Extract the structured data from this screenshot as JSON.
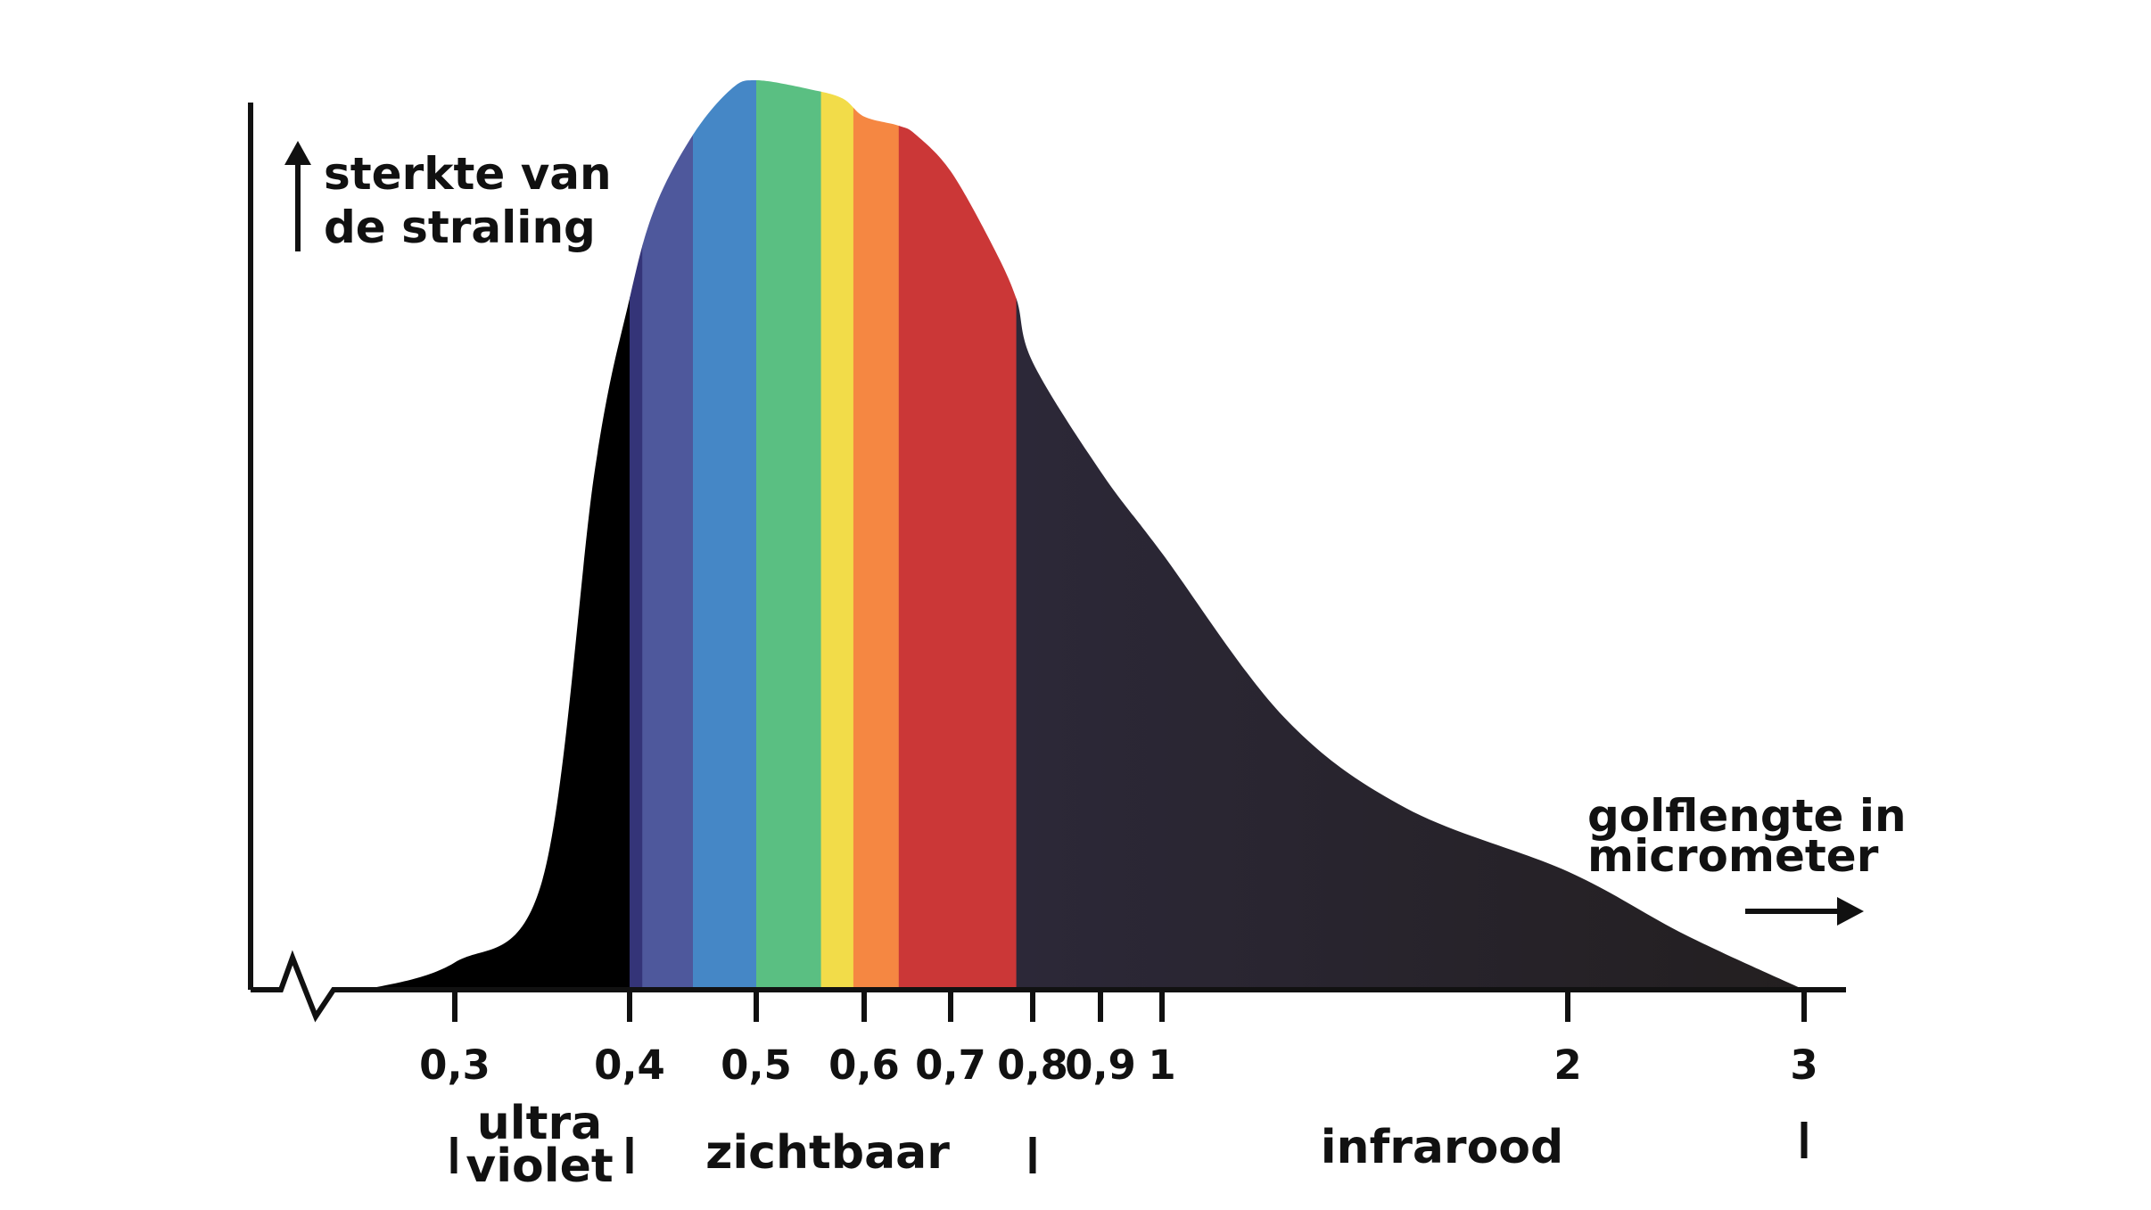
{
  "chart_data": {
    "type": "area",
    "ylabel": [
      "sterkte van",
      "de straling"
    ],
    "xlabel": [
      "golflengte in",
      "micrometer"
    ],
    "x_unit": "micrometer",
    "x_ticks": [
      0.3,
      0.4,
      0.5,
      0.6,
      0.7,
      0.8,
      0.9,
      1,
      2,
      3
    ],
    "x_tick_labels": [
      "0,3",
      "0,4",
      "0,5",
      "0,6",
      "0,7",
      "0,8",
      "0,9",
      "1",
      "2",
      "3"
    ],
    "axis_break": true,
    "ylim": [
      0,
      1
    ],
    "curve": [
      {
        "x": 0.26,
        "y": 0.0
      },
      {
        "x": 0.3,
        "y": 0.03
      },
      {
        "x": 0.35,
        "y": 0.12
      },
      {
        "x": 0.38,
        "y": 0.57
      },
      {
        "x": 0.4,
        "y": 0.76
      },
      {
        "x": 0.42,
        "y": 0.86
      },
      {
        "x": 0.45,
        "y": 0.94
      },
      {
        "x": 0.48,
        "y": 0.99
      },
      {
        "x": 0.5,
        "y": 1.0
      },
      {
        "x": 0.55,
        "y": 0.99
      },
      {
        "x": 0.58,
        "y": 0.98
      },
      {
        "x": 0.6,
        "y": 0.96
      },
      {
        "x": 0.64,
        "y": 0.95
      },
      {
        "x": 0.66,
        "y": 0.94
      },
      {
        "x": 0.7,
        "y": 0.9
      },
      {
        "x": 0.75,
        "y": 0.82
      },
      {
        "x": 0.78,
        "y": 0.76
      },
      {
        "x": 0.8,
        "y": 0.69
      },
      {
        "x": 0.9,
        "y": 0.57
      },
      {
        "x": 1.0,
        "y": 0.48
      },
      {
        "x": 1.3,
        "y": 0.3
      },
      {
        "x": 1.6,
        "y": 0.2
      },
      {
        "x": 2.0,
        "y": 0.13
      },
      {
        "x": 2.5,
        "y": 0.06
      },
      {
        "x": 3.0,
        "y": 0.0
      }
    ],
    "bands": [
      {
        "from": 0.26,
        "to": 0.4,
        "color": "#000000"
      },
      {
        "from": 0.4,
        "to": 0.41,
        "color": "#343478"
      },
      {
        "from": 0.41,
        "to": 0.45,
        "color": "#4e589c"
      },
      {
        "from": 0.45,
        "to": 0.5,
        "color": "#4587c6"
      },
      {
        "from": 0.5,
        "to": 0.56,
        "color": "#5abf82"
      },
      {
        "from": 0.56,
        "to": 0.59,
        "color": "#f2dc49"
      },
      {
        "from": 0.59,
        "to": 0.64,
        "color": "#f58742"
      },
      {
        "from": 0.64,
        "to": 0.78,
        "color": "#cb3737"
      },
      {
        "from": 0.78,
        "to": 3.0,
        "color": "#2a2634"
      }
    ],
    "regions": [
      {
        "lines": [
          "ultra",
          "violet"
        ],
        "from": 0.3,
        "to": 0.4
      },
      {
        "lines": [
          "zichtbaar"
        ],
        "from": 0.4,
        "to": 0.8
      },
      {
        "lines": [
          "infrarood"
        ],
        "from": 0.8,
        "to": 3
      }
    ]
  }
}
